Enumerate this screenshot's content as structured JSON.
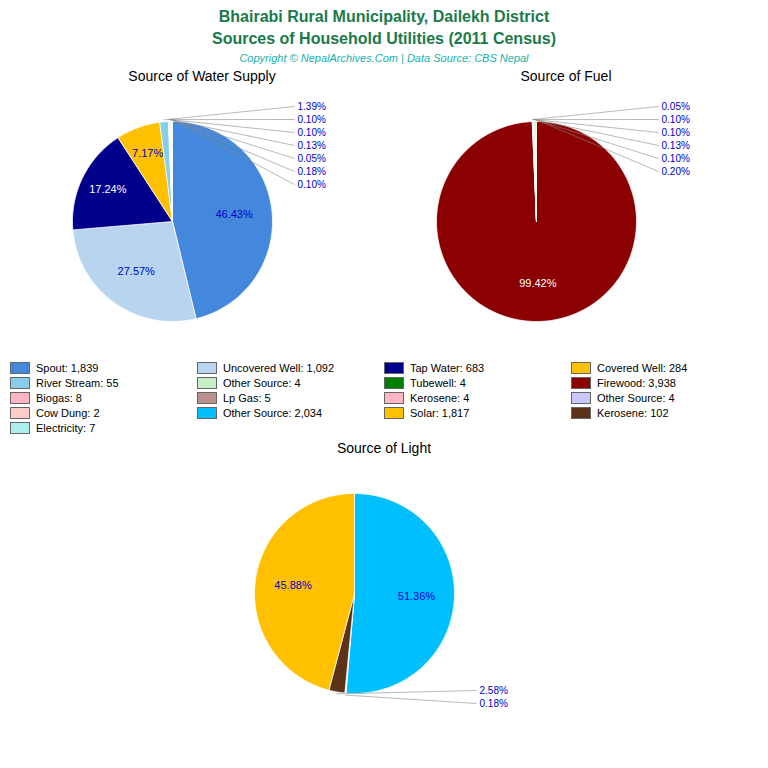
{
  "title": "Bhairabi Rural Municipality, Dailekh District\nSources of Household Utilities (2011 Census)",
  "subtitle": "Copyright © NepalArchives.Com | Data Source: CBS Nepal",
  "chart_data": [
    {
      "type": "pie",
      "title": "Source of Water Supply",
      "values": [
        46.43,
        27.57,
        17.24,
        7.17,
        1.39,
        0.1,
        0.1,
        0.13,
        0.05,
        0.18,
        0.1
      ],
      "value_labels": [
        "46.43%",
        "27.57%",
        "17.24%",
        "7.17%",
        "1.39%",
        "0.10%",
        "0.10%",
        "0.13%",
        "0.05%",
        "0.18%",
        "0.10%"
      ],
      "colors": [
        "#4488dd",
        "#b8d4ee",
        "#00008b",
        "#ffc000",
        "#87ceeb",
        "#c8f0c8",
        "#e0ffff",
        "#bc8f8f",
        "#ffcccc",
        "#adeeee",
        "#90ee90"
      ],
      "data_labels": true
    },
    {
      "type": "pie",
      "title": "Source of Fuel",
      "values": [
        99.42,
        0.05,
        0.1,
        0.1,
        0.13,
        0.1,
        0.2
      ],
      "value_labels": [
        "99.42%",
        "0.05%",
        "0.10%",
        "0.10%",
        "0.13%",
        "0.10%",
        "0.20%"
      ],
      "colors": [
        "#8b0000",
        "#c8c8ff",
        "#ffb6c1",
        "#87ceeb",
        "#c8c8ff",
        "#008000",
        "#ffc000"
      ],
      "data_labels": true
    },
    {
      "type": "legend",
      "categories": [
        "Spout: 1,839",
        "Uncovered Well: 1,092",
        "Tap Water: 683",
        "Covered Well: 284",
        "River Stream: 55",
        "Other Source: 4",
        "Tubewell: 4",
        "Firewood: 3,938",
        "Biogas: 8",
        "Lp Gas: 5",
        "Kerosene: 4",
        "Other Source: 4",
        "Cow Dung: 2",
        "Other Source: 2,034",
        "Solar: 1,817",
        "Kerosene: 102",
        "Electricity: 7"
      ],
      "colors": [
        "#4488dd",
        "#b8d4ee",
        "#00008b",
        "#ffc000",
        "#87ceeb",
        "#c8f0c8",
        "#008000",
        "#8b0000",
        "#ffb6c1",
        "#bc8f8f",
        "#ffb6c1",
        "#c8c8ff",
        "#ffcccc",
        "#00bfff",
        "#ffc000",
        "#5c3317",
        "#adeeee"
      ]
    },
    {
      "type": "pie",
      "title": "Source of Light",
      "values": [
        51.36,
        0.18,
        2.58,
        45.88
      ],
      "value_labels": [
        "51.36%",
        "0.18%",
        "2.58%",
        "45.88%"
      ],
      "colors": [
        "#00bfff",
        "#e0ffff",
        "#5c3317",
        "#ffc000"
      ],
      "data_labels": true
    }
  ]
}
